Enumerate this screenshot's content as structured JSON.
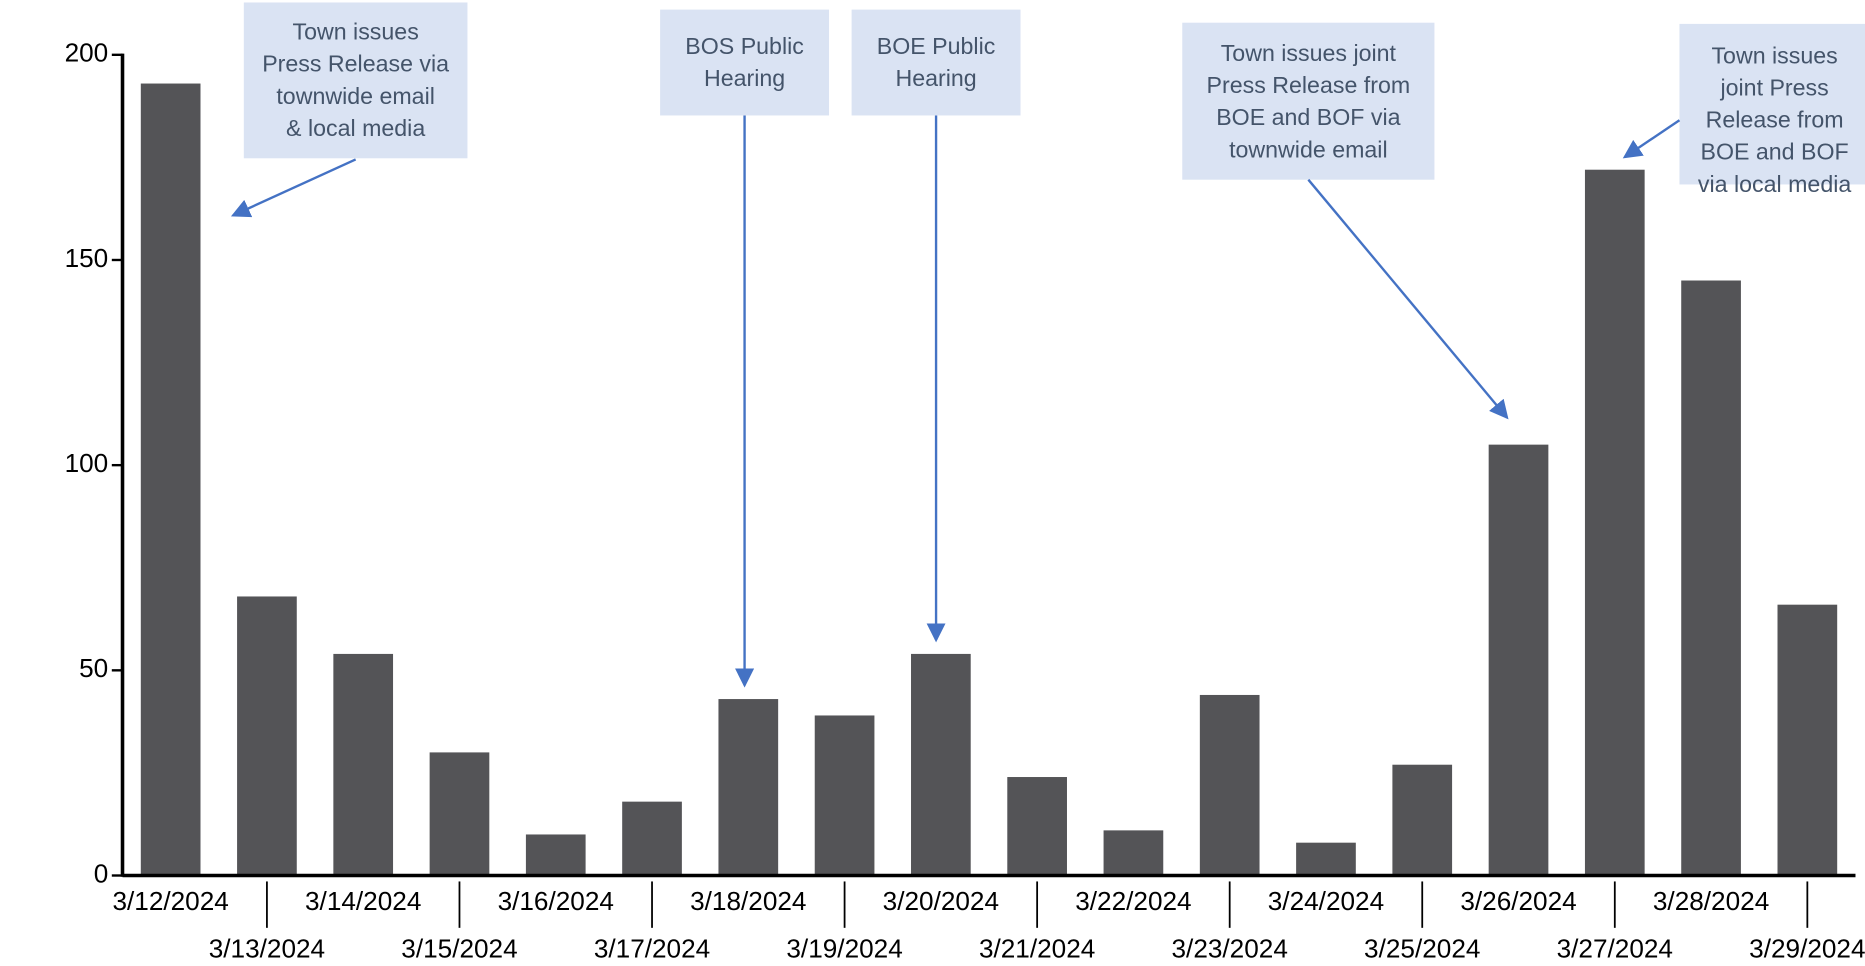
{
  "chart_data": {
    "type": "bar",
    "categories": [
      "3/12/2024",
      "3/13/2024",
      "3/14/2024",
      "3/15/2024",
      "3/16/2024",
      "3/17/2024",
      "3/18/2024",
      "3/19/2024",
      "3/20/2024",
      "3/21/2024",
      "3/22/2024",
      "3/23/2024",
      "3/24/2024",
      "3/25/2024",
      "3/26/2024",
      "3/27/2024",
      "3/28/2024",
      "3/29/2024"
    ],
    "values": [
      193,
      68,
      54,
      30,
      10,
      18,
      43,
      39,
      54,
      24,
      11,
      44,
      8,
      27,
      105,
      172,
      145,
      66
    ],
    "color": "#545457",
    "ylim": [
      0,
      200
    ],
    "yticks": [
      0,
      50,
      100,
      150,
      200
    ],
    "grid": false,
    "annotations": [
      [
        "Town issues",
        "Press Release via",
        "townwide email",
        "& local media"
      ],
      [
        "BOS Public",
        "Hearing"
      ],
      [
        "BOE Public",
        "Hearing"
      ],
      [
        "Town issues joint",
        "Press Release from",
        "BOE and BOF via",
        "townwide email"
      ],
      [
        "Town issues",
        "joint Press",
        "Release from",
        "BOE and BOF",
        "via local media"
      ]
    ]
  }
}
